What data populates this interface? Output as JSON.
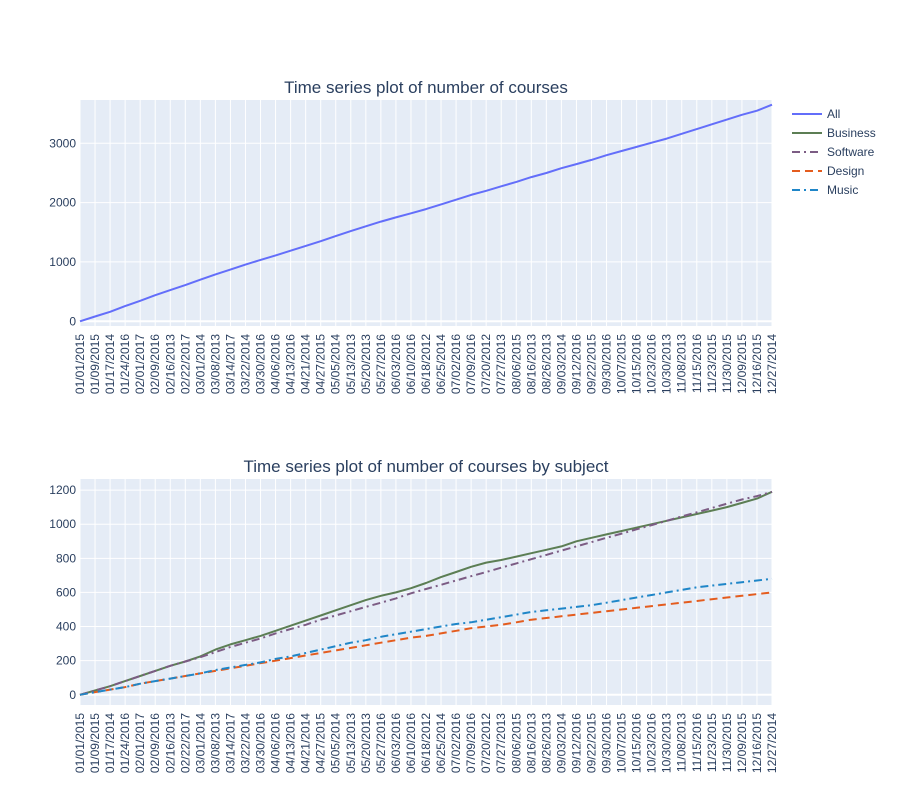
{
  "chart_data": [
    {
      "type": "line",
      "title": "Time series plot of number of courses",
      "xlabel": "",
      "ylabel": "",
      "ylim": [
        -80,
        3730
      ],
      "y_ticks": [
        0,
        1000,
        2000,
        3000
      ],
      "x_tick_labels": [
        "01/01/2015",
        "01/09/2015",
        "01/17/2014",
        "01/24/2016",
        "02/01/2017",
        "02/09/2016",
        "02/16/2013",
        "02/22/2017",
        "03/01/2014",
        "03/08/2013",
        "03/14/2017",
        "03/22/2014",
        "03/30/2016",
        "04/06/2016",
        "04/13/2016",
        "04/21/2014",
        "04/27/2015",
        "05/05/2014",
        "05/13/2013",
        "05/20/2013",
        "05/27/2016",
        "06/03/2016",
        "06/10/2016",
        "06/18/2012",
        "06/25/2014",
        "07/02/2016",
        "07/09/2016",
        "07/20/2012",
        "07/27/2013",
        "08/06/2015",
        "08/16/2013",
        "08/26/2013",
        "09/03/2014",
        "09/12/2016",
        "09/22/2015",
        "09/30/2016",
        "10/07/2015",
        "10/15/2016",
        "10/23/2016",
        "10/30/2013",
        "11/08/2013",
        "11/15/2016",
        "11/23/2015",
        "11/30/2015",
        "12/09/2015",
        "12/16/2015",
        "12/27/2014"
      ],
      "grid": true,
      "legend_position": "top-right",
      "series": [
        {
          "name": "All",
          "color": "#636efa",
          "dash": "solid",
          "values": [
            0,
            80,
            160,
            255,
            345,
            440,
            525,
            610,
            700,
            790,
            870,
            955,
            1035,
            1110,
            1190,
            1270,
            1350,
            1435,
            1520,
            1600,
            1680,
            1750,
            1820,
            1890,
            1970,
            2050,
            2130,
            2200,
            2275,
            2350,
            2430,
            2500,
            2580,
            2650,
            2720,
            2800,
            2870,
            2940,
            3010,
            3080,
            3160,
            3240,
            3320,
            3400,
            3480,
            3550,
            3650
          ]
        }
      ]
    },
    {
      "type": "line",
      "title": "Time series plot of number of courses by subject",
      "xlabel": "",
      "ylabel": "",
      "ylim": [
        -60,
        1265
      ],
      "y_ticks": [
        0,
        200,
        400,
        600,
        800,
        1000,
        1200
      ],
      "x_tick_labels": [
        "01/01/2015",
        "01/09/2015",
        "01/17/2014",
        "01/24/2016",
        "02/01/2017",
        "02/09/2016",
        "02/16/2013",
        "02/22/2017",
        "03/01/2014",
        "03/08/2013",
        "03/14/2017",
        "03/22/2014",
        "03/30/2016",
        "04/06/2016",
        "04/13/2016",
        "04/21/2014",
        "04/27/2015",
        "05/05/2014",
        "05/13/2013",
        "05/20/2013",
        "05/27/2016",
        "06/03/2016",
        "06/10/2016",
        "06/18/2012",
        "06/25/2014",
        "07/02/2016",
        "07/09/2016",
        "07/20/2012",
        "07/27/2013",
        "08/06/2015",
        "08/16/2013",
        "08/26/2013",
        "09/03/2014",
        "09/12/2016",
        "09/22/2015",
        "09/30/2016",
        "10/07/2015",
        "10/15/2016",
        "10/23/2016",
        "10/30/2013",
        "11/08/2013",
        "11/15/2016",
        "11/23/2015",
        "11/30/2015",
        "12/09/2015",
        "12/16/2015",
        "12/27/2014"
      ],
      "grid": true,
      "legend_position": "top-right",
      "series": [
        {
          "name": "Business",
          "color": "#5c7e54",
          "dash": "solid",
          "values": [
            0,
            25,
            50,
            80,
            110,
            140,
            170,
            195,
            225,
            265,
            295,
            320,
            345,
            375,
            405,
            435,
            465,
            495,
            525,
            555,
            580,
            600,
            625,
            655,
            690,
            720,
            750,
            775,
            790,
            810,
            830,
            850,
            870,
            900,
            920,
            940,
            960,
            980,
            1000,
            1020,
            1040,
            1060,
            1080,
            1100,
            1125,
            1150,
            1190
          ]
        },
        {
          "name": "Software",
          "color": "#7c5c84",
          "dash": "dashdot",
          "values": [
            0,
            25,
            50,
            80,
            110,
            140,
            170,
            195,
            220,
            250,
            280,
            305,
            330,
            360,
            385,
            410,
            440,
            465,
            490,
            515,
            540,
            565,
            595,
            620,
            645,
            670,
            695,
            720,
            745,
            770,
            795,
            820,
            845,
            870,
            895,
            920,
            945,
            970,
            995,
            1020,
            1045,
            1070,
            1095,
            1120,
            1145,
            1165,
            1190
          ]
        },
        {
          "name": "Design",
          "color": "#e45c1e",
          "dash": "dash",
          "values": [
            0,
            15,
            30,
            45,
            65,
            80,
            95,
            110,
            125,
            140,
            155,
            170,
            185,
            200,
            215,
            230,
            245,
            260,
            275,
            290,
            305,
            320,
            335,
            345,
            360,
            375,
            390,
            400,
            410,
            425,
            440,
            450,
            460,
            470,
            480,
            490,
            500,
            510,
            520,
            530,
            540,
            550,
            560,
            570,
            580,
            590,
            600
          ]
        },
        {
          "name": "Music",
          "color": "#1f86c8",
          "dash": "dashdot",
          "values": [
            0,
            15,
            30,
            45,
            65,
            80,
            95,
            110,
            125,
            145,
            160,
            175,
            190,
            210,
            225,
            245,
            265,
            285,
            305,
            320,
            340,
            355,
            370,
            385,
            400,
            415,
            425,
            440,
            455,
            470,
            485,
            495,
            505,
            515,
            525,
            540,
            555,
            570,
            585,
            600,
            615,
            630,
            640,
            650,
            660,
            670,
            680
          ]
        }
      ]
    }
  ]
}
